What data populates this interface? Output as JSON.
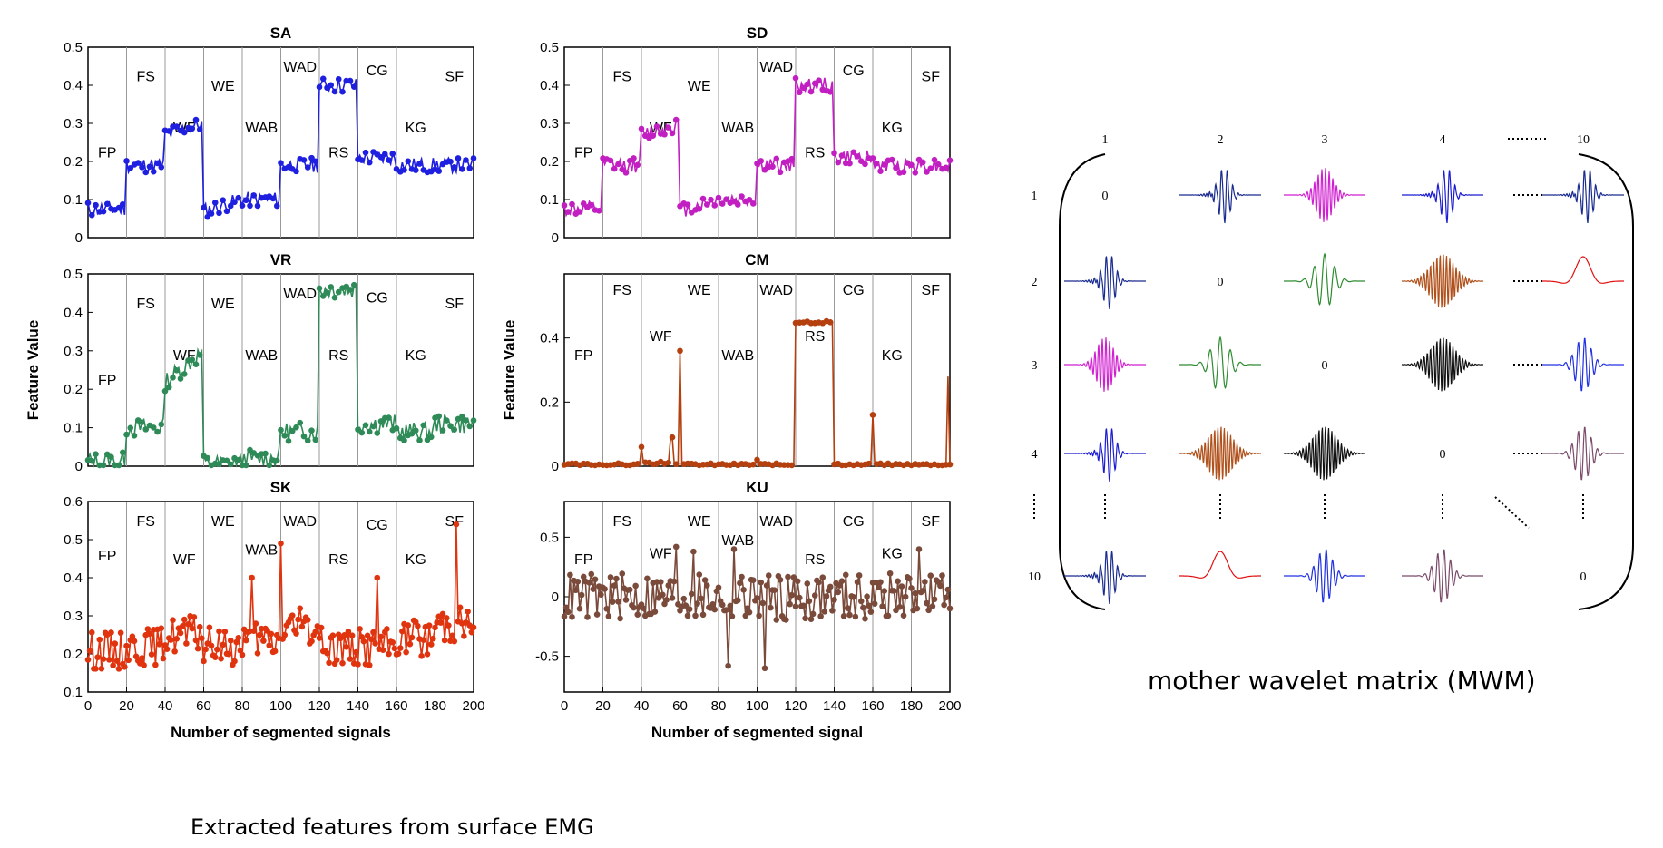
{
  "caption_left": "Extracted features from surface EMG",
  "caption_right": "mother wavelet matrix (MWM)",
  "regions": [
    "FP",
    "FS",
    "WF",
    "WE",
    "WAB",
    "WAD",
    "RS",
    "CG",
    "KG",
    "SF"
  ],
  "colors": {
    "SA": "#1f1fe0",
    "SD": "#c21fc2",
    "VR": "#2e8b57",
    "CM": "#b5400f",
    "SK": "#e0340f",
    "KU": "#7a4a3a"
  },
  "chart_data": [
    {
      "type": "line",
      "title": "SA",
      "ylabel": "",
      "xlabel": "",
      "ylim": [
        0,
        0.5
      ],
      "yticks": [
        "0",
        "0.1",
        "0.2",
        "0.3",
        "0.4",
        "0.5"
      ],
      "xlim": [
        0,
        200
      ],
      "segment_levels": [
        0.075,
        0.19,
        0.27,
        0.07,
        0.1,
        0.19,
        0.4,
        0.21,
        0.19,
        0.19
      ],
      "noise": 0.02,
      "seed": 11
    },
    {
      "type": "line",
      "title": "SD",
      "ylabel": "",
      "xlabel": "",
      "ylim": [
        0,
        0.5
      ],
      "yticks": [
        "0",
        "0.1",
        "0.2",
        "0.3",
        "0.4",
        "0.5"
      ],
      "xlim": [
        0,
        200
      ],
      "segment_levels": [
        0.075,
        0.19,
        0.27,
        0.07,
        0.1,
        0.19,
        0.4,
        0.21,
        0.19,
        0.19
      ],
      "noise": 0.02,
      "seed": 12
    },
    {
      "type": "line",
      "title": "VR",
      "ylabel": "Feature Value",
      "xlabel": "",
      "ylim": [
        0,
        0.5
      ],
      "yticks": [
        "0",
        "0.1",
        "0.2",
        "0.3",
        "0.4",
        "0.5"
      ],
      "xlim": [
        0,
        200
      ],
      "segment_levels": [
        0.012,
        0.1,
        0.22,
        0.006,
        0.02,
        0.09,
        0.46,
        0.11,
        0.09,
        0.11
      ],
      "noise": 0.025,
      "seed": 13
    },
    {
      "type": "line",
      "title": "CM",
      "ylabel": "Feature Value",
      "xlabel": "",
      "ylim": [
        0,
        0.6
      ],
      "yticks": [
        "0",
        "0.2",
        "0.4"
      ],
      "xlim": [
        0,
        200
      ],
      "segment_levels": [
        0.005,
        0.005,
        0.01,
        0.005,
        0.005,
        0.005,
        0.45,
        0.005,
        0.005,
        0.005
      ],
      "noise": 0.004,
      "seed": 14,
      "spikes": [
        [
          40,
          0.06
        ],
        [
          55,
          0.08
        ],
        [
          56,
          0.09
        ],
        [
          60,
          0.36
        ],
        [
          100,
          0.02
        ],
        [
          160,
          0.16
        ],
        [
          199,
          0.28
        ]
      ]
    },
    {
      "type": "line",
      "title": "SK",
      "ylabel": "",
      "xlabel": "Number of segmented signals",
      "ylim": [
        0.1,
        0.6
      ],
      "yticks": [
        "0.1",
        "0.2",
        "0.3",
        "0.4",
        "0.5",
        "0.6"
      ],
      "xlim": [
        0,
        200
      ],
      "xticks": [
        "0",
        "20",
        "40",
        "60",
        "80",
        "100",
        "120",
        "140",
        "160",
        "180",
        "200"
      ],
      "segment_levels": [
        0.21,
        0.22,
        0.25,
        0.22,
        0.23,
        0.27,
        0.22,
        0.22,
        0.24,
        0.28
      ],
      "noise": 0.05,
      "seed": 15,
      "spikes": [
        [
          85,
          0.4
        ],
        [
          100,
          0.49
        ],
        [
          150,
          0.4
        ],
        [
          191,
          0.54
        ]
      ]
    },
    {
      "type": "line",
      "title": "KU",
      "ylabel": "",
      "xlabel": "Number of segmented signal",
      "ylim": [
        -0.8,
        0.8
      ],
      "yticks": [
        "-0.5",
        "0",
        "0.5"
      ],
      "xlim": [
        0,
        200
      ],
      "xticks": [
        "0",
        "20",
        "40",
        "60",
        "80",
        "100",
        "120",
        "140",
        "160",
        "180",
        "200"
      ],
      "segment_levels": [
        0,
        0,
        0,
        0,
        0,
        0,
        0,
        0,
        0,
        0
      ],
      "noise": 0.2,
      "seed": 16,
      "spikes": [
        [
          58,
          0.42
        ],
        [
          67,
          0.38
        ],
        [
          85,
          -0.58
        ],
        [
          88,
          0.4
        ],
        [
          104,
          -0.6
        ],
        [
          184,
          0.4
        ]
      ]
    }
  ],
  "mwm": {
    "col_headers": [
      "1",
      "2",
      "3",
      "4",
      "10"
    ],
    "row_headers": [
      "1",
      "2",
      "3",
      "4",
      "10"
    ],
    "zero": "0"
  }
}
